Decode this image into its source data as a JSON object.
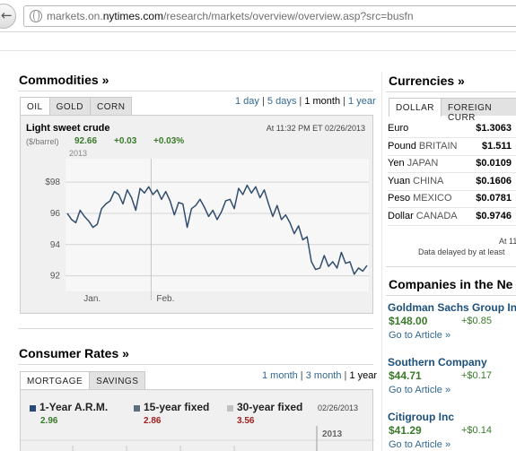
{
  "browser": {
    "back_glyph": "←",
    "url_prefix": "markets.on.",
    "url_domain": "nytimes.com",
    "url_path": "/research/markets/overview/overview.asp?src=busfn"
  },
  "commodities": {
    "title": "Commodities »",
    "tabs": [
      "OIL",
      "GOLD",
      "CORN"
    ],
    "ranges": [
      "1 day",
      "5 days",
      "1 month",
      "1 year"
    ],
    "current_range": "1 month",
    "chart": {
      "name": "Light sweet crude",
      "unit": "($/barrel)",
      "price": "92.66",
      "change": "+0.03",
      "pct_change": "+0.03%",
      "timestamp": "At 11:32 PM ET 02/26/2013",
      "year_label": "2013"
    }
  },
  "chart_data": {
    "type": "line",
    "title": "Light sweet crude",
    "ylabel": "($/barrel)",
    "ylim": [
      91,
      99.5
    ],
    "yticks": [
      "$98",
      "96",
      "94",
      "92"
    ],
    "ytick_values": [
      98,
      96,
      94,
      92
    ],
    "xticks": [
      "Jan.",
      "Feb."
    ],
    "xtick_positions": [
      0.06,
      0.3
    ],
    "grid": true,
    "series": [
      {
        "values": [
          96.0,
          95.6,
          95.4,
          96.2,
          95.8,
          95.5,
          95.1,
          95.3,
          96.3,
          96.6,
          96.8,
          97.4,
          97.2,
          96.6,
          97.5,
          97.0,
          96.2,
          97.6,
          97.3,
          97.7,
          97.2,
          97.5,
          96.9,
          97.4,
          96.8,
          95.9,
          96.7,
          96.6,
          95.1,
          96.3,
          96.5,
          96.9,
          96.4,
          95.8,
          96.2,
          95.6,
          96.1,
          96.8,
          96.9,
          96.3,
          97.6,
          97.2,
          97.8,
          97.3,
          97.7,
          97.0,
          97.5,
          96.6,
          95.8,
          96.5,
          95.6,
          95.9,
          95.4,
          94.7,
          95.2,
          94.3,
          94.5,
          92.9,
          92.4,
          92.5,
          93.3,
          92.6,
          92.9,
          92.5,
          93.5,
          92.8,
          92.9,
          92.1,
          92.5,
          92.3,
          92.66
        ]
      }
    ]
  },
  "currencies": {
    "title": "Currencies »",
    "tabs": [
      "DOLLAR",
      "FOREIGN CURR"
    ],
    "rows": [
      {
        "name": "Euro",
        "country": "",
        "value": "$1.3063"
      },
      {
        "name": "Pound",
        "country": "BRITAIN",
        "value": "$1.511"
      },
      {
        "name": "Yen",
        "country": "JAPAN",
        "value": "$0.0109"
      },
      {
        "name": "Yuan",
        "country": "CHINA",
        "value": "$0.1606"
      },
      {
        "name": "Peso",
        "country": "MEXICO",
        "value": "$0.0781"
      },
      {
        "name": "Dollar",
        "country": "CANADA",
        "value": "$0.9746"
      }
    ],
    "timestamp": "At 11",
    "delay_note": "Data delayed by at least"
  },
  "companies": {
    "title": "Companies in the Ne",
    "items": [
      {
        "name": "Goldman Sachs Group Inc",
        "price": "$148.00",
        "change": "+$0.85",
        "link": "Go to Article »"
      },
      {
        "name": "Southern Company",
        "price": "$44.71",
        "change": "+$0.17",
        "link": "Go to Article »"
      },
      {
        "name": "Citigroup Inc",
        "price": "$41.29",
        "change": "+$0.14",
        "link": "Go to Article »"
      }
    ]
  },
  "consumer_rates": {
    "title": "Consumer Rates »",
    "tabs": [
      "MORTGAGE",
      "SAVINGS"
    ],
    "ranges": [
      "1 month",
      "3 month",
      "1 year"
    ],
    "current_range": "1 year",
    "legend": [
      {
        "label": "1-Year A.R.M.",
        "value": "2.96",
        "color": "#2c4a78",
        "value_color": "#3a7a2a"
      },
      {
        "label": "15-year fixed",
        "value": "2.86",
        "color": "#5c6f7c",
        "value_color": "#a02020"
      },
      {
        "label": "30-year fixed",
        "value": "3.56",
        "color": "#c0c0c0",
        "value_color": "#a02020"
      }
    ],
    "date": "02/26/2013",
    "year_label": "2013"
  },
  "colors": {
    "link": "#326891",
    "positive": "#3a7a2a",
    "line": "#324e6e"
  }
}
